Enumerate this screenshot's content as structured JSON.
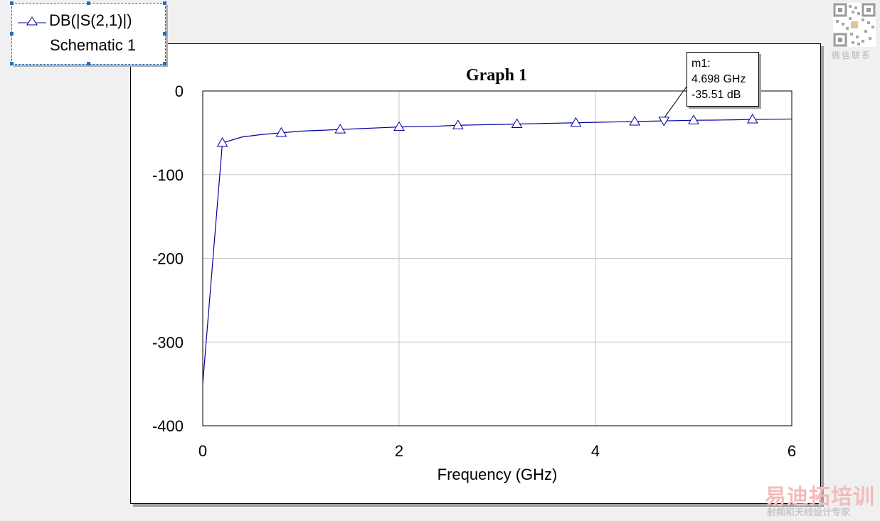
{
  "chart_data": {
    "type": "line",
    "title": "Graph 1",
    "xlabel": "Frequency (GHz)",
    "ylabel": "",
    "xlim": [
      0,
      6
    ],
    "ylim": [
      -400,
      0
    ],
    "xticks": [
      0,
      2,
      4,
      6
    ],
    "yticks": [
      0,
      -100,
      -200,
      -300,
      -400
    ],
    "xtick_labels": [
      "0",
      "2",
      "4",
      "6"
    ],
    "ytick_labels": [
      "0",
      "-100",
      "-200",
      "-300",
      "-400"
    ],
    "grid": true,
    "legend_position": "top-left",
    "series": [
      {
        "name": "DB(|S(2,1)|)",
        "subtitle": "Schematic 1",
        "color": "#0000a0",
        "marker": "triangle",
        "x": [
          0,
          0.2,
          0.4,
          0.6,
          0.8,
          1.0,
          1.2,
          1.4,
          1.6,
          1.8,
          2.0,
          2.2,
          2.4,
          2.6,
          2.8,
          3.0,
          3.2,
          3.4,
          3.6,
          3.8,
          4.0,
          4.2,
          4.4,
          4.6,
          4.8,
          5.0,
          5.2,
          5.4,
          5.6,
          5.8,
          6.0
        ],
        "y": [
          -350,
          -62,
          -55,
          -52,
          -50,
          -48,
          -47,
          -46,
          -45,
          -44,
          -43,
          -42.5,
          -42,
          -41,
          -40.5,
          -40,
          -39.5,
          -39,
          -38.5,
          -38,
          -37.5,
          -37,
          -36.5,
          -36,
          -35.5,
          -35,
          -34.8,
          -34.5,
          -34,
          -33.8,
          -33.5
        ],
        "marker_x": [
          0.2,
          0.8,
          1.4,
          2.0,
          2.6,
          3.2,
          3.8,
          4.4,
          5.0,
          5.6
        ],
        "marker_y": [
          -62,
          -50,
          -46,
          -43,
          -41,
          -39.5,
          -38,
          -36.5,
          -35,
          -34
        ]
      }
    ],
    "markers": [
      {
        "name": "m1:",
        "x": 4.698,
        "y": -35.51,
        "freq_label": "4.698 GHz",
        "value_label": "-35.51 dB"
      }
    ]
  },
  "legend": {
    "series_label": "DB(|S(2,1)|)",
    "source_label": "Schematic 1"
  },
  "marker_box": {
    "name": "m1:",
    "freq": "4.698 GHz",
    "value": "-35.51 dB"
  },
  "watermark": {
    "qr_label": "微信联系",
    "brand": "易迪拓培训",
    "tagline": "射频和天线设计专家"
  }
}
